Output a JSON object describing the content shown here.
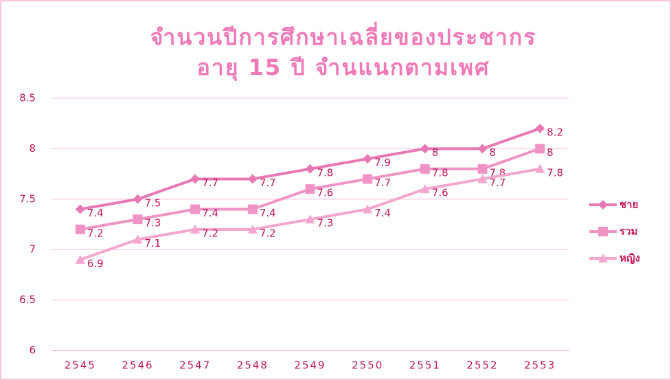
{
  "chart_data": {
    "type": "line",
    "title": [
      "จำนวนปีการศึกษาเฉลี่ยของประชากร",
      "อายุ 15  ปี  จำนแนกตามเพศ"
    ],
    "categories": [
      "2545",
      "2546",
      "2547",
      "2548",
      "2549",
      "2550",
      "2551",
      "2552",
      "2553"
    ],
    "series": [
      {
        "name": "ชาย",
        "color": "#e879b5",
        "marker": "diamond",
        "values": [
          7.4,
          7.5,
          7.7,
          7.7,
          7.8,
          7.9,
          8,
          8,
          8.2
        ]
      },
      {
        "name": "รวม",
        "color": "#f094c6",
        "marker": "square",
        "values": [
          7.2,
          7.3,
          7.4,
          7.4,
          7.6,
          7.7,
          7.8,
          7.8,
          8
        ]
      },
      {
        "name": "หญิง",
        "color": "#f4a6cf",
        "marker": "triangle",
        "values": [
          6.9,
          7.1,
          7.2,
          7.2,
          7.3,
          7.4,
          7.6,
          7.7,
          7.8
        ]
      }
    ],
    "ylim": [
      6,
      8.5
    ],
    "yticks": [
      6,
      6.5,
      7,
      7.5,
      8,
      8.5
    ],
    "grid": true,
    "legend": "right",
    "data_labels": true
  }
}
